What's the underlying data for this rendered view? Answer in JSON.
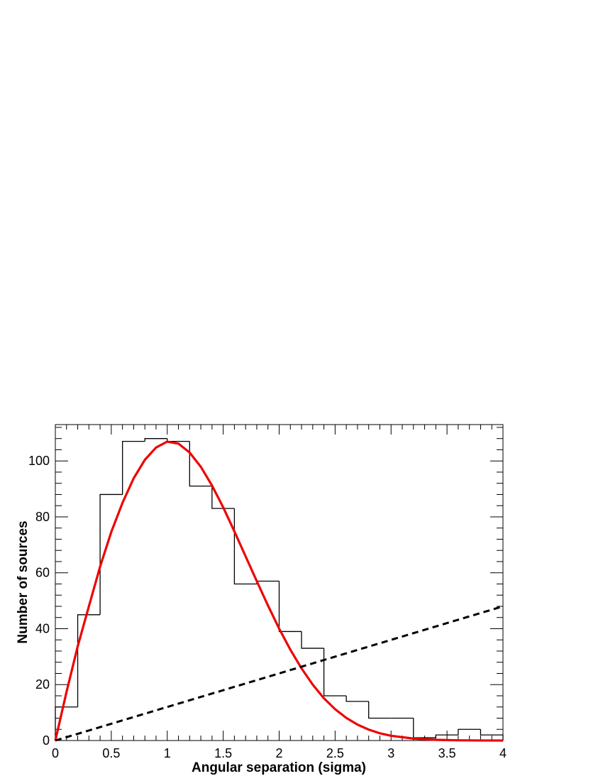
{
  "chart_data": {
    "type": "bar",
    "title": "",
    "xlabel": "Angular separation (sigma)",
    "ylabel": "Number of sources",
    "xlim": [
      0,
      4
    ],
    "ylim": [
      0,
      113
    ],
    "grid": false,
    "x_ticks": [
      0,
      0.5,
      1,
      1.5,
      2,
      2.5,
      3,
      3.5,
      4
    ],
    "x_tick_labels": [
      "0",
      "0.5",
      "1",
      "1.5",
      "2",
      "2.5",
      "3",
      "3.5",
      "4"
    ],
    "y_ticks": [
      0,
      20,
      40,
      60,
      80,
      100
    ],
    "y_tick_labels": [
      "0",
      "20",
      "40",
      "60",
      "80",
      "100"
    ],
    "histogram": {
      "bin_edges": [
        0,
        0.2,
        0.4,
        0.6,
        0.8,
        1.0,
        1.2,
        1.4,
        1.6,
        1.8,
        2.0,
        2.2,
        2.4,
        2.6,
        2.8,
        3.0,
        3.2,
        3.4,
        3.6,
        3.8,
        4.0
      ],
      "counts": [
        12,
        45,
        88,
        107,
        108,
        107,
        91,
        83,
        56,
        57,
        39,
        33,
        16,
        14,
        8,
        8,
        1,
        2,
        4,
        2
      ],
      "color": "#000000"
    },
    "fit_curve": {
      "style": "solid",
      "color": "#ee0000",
      "x": [
        0,
        0.1,
        0.2,
        0.3,
        0.4,
        0.5,
        0.6,
        0.7,
        0.8,
        0.9,
        1.0,
        1.1,
        1.2,
        1.3,
        1.4,
        1.5,
        1.6,
        1.7,
        1.8,
        1.9,
        2.0,
        2.1,
        2.2,
        2.3,
        2.4,
        2.5,
        2.6,
        2.7,
        2.8,
        2.9,
        3.0,
        3.2,
        3.4,
        3.6,
        3.8,
        4.0
      ],
      "y": [
        0,
        17.4,
        33.7,
        48.0,
        62.2,
        74.6,
        85.0,
        93.8,
        100.4,
        104.8,
        106.9,
        106.2,
        103.0,
        97.9,
        91.2,
        83.4,
        74.8,
        65.9,
        57.0,
        48.3,
        40.0,
        32.5,
        25.8,
        20.0,
        15.1,
        11.2,
        8.1,
        5.7,
        3.9,
        2.6,
        1.7,
        0.7,
        0.25,
        0.08,
        0.02,
        0
      ]
    },
    "reference_line": {
      "style": "dashed",
      "color": "#000000",
      "x": [
        0,
        4
      ],
      "y": [
        0,
        48
      ]
    }
  }
}
